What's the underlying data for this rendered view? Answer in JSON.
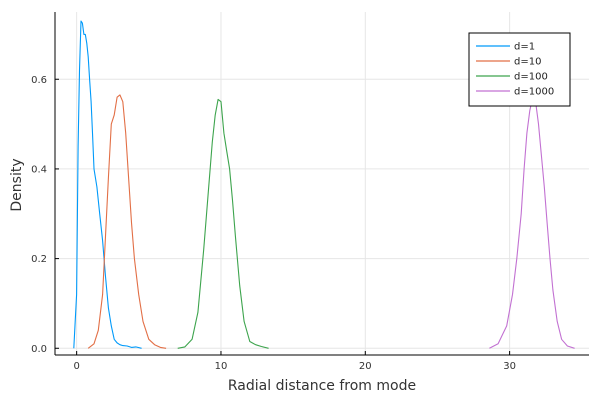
{
  "chart_data": {
    "type": "line",
    "title": "",
    "xlabel": "Radial distance from mode",
    "ylabel": "Density",
    "xlim": [
      -1.5,
      35.5
    ],
    "ylim": [
      -0.015,
      0.75
    ],
    "xticks": [
      0,
      10,
      20,
      30
    ],
    "yticks": [
      0.0,
      0.2,
      0.4,
      0.6
    ],
    "xtick_labels": [
      "0",
      "10",
      "20",
      "30"
    ],
    "ytick_labels": [
      "0.0",
      "0.2",
      "0.4",
      "0.6"
    ],
    "grid": true,
    "legend_position": "top-right",
    "series": [
      {
        "name": "d=1",
        "color": "#009AFA",
        "x": [
          -0.2,
          0.0,
          0.1,
          0.2,
          0.3,
          0.4,
          0.5,
          0.6,
          0.7,
          0.8,
          0.9,
          1.0,
          1.1,
          1.2,
          1.4,
          1.6,
          1.8,
          2.0,
          2.2,
          2.4,
          2.6,
          2.8,
          3.0,
          3.2,
          3.5,
          3.8,
          4.1,
          4.5
        ],
        "y": [
          0.0,
          0.12,
          0.45,
          0.62,
          0.73,
          0.725,
          0.7,
          0.7,
          0.68,
          0.65,
          0.6,
          0.55,
          0.48,
          0.4,
          0.36,
          0.3,
          0.24,
          0.16,
          0.09,
          0.05,
          0.02,
          0.012,
          0.008,
          0.006,
          0.005,
          0.002,
          0.003,
          0.0
        ]
      },
      {
        "name": "d=10",
        "color": "#E26F46",
        "x": [
          0.8,
          1.2,
          1.5,
          1.8,
          2.0,
          2.2,
          2.4,
          2.6,
          2.8,
          3.0,
          3.2,
          3.4,
          3.6,
          3.8,
          4.0,
          4.3,
          4.6,
          5.0,
          5.4,
          5.8,
          6.2
        ],
        "y": [
          0.0,
          0.01,
          0.04,
          0.12,
          0.25,
          0.38,
          0.5,
          0.52,
          0.56,
          0.565,
          0.55,
          0.48,
          0.38,
          0.28,
          0.2,
          0.12,
          0.06,
          0.02,
          0.008,
          0.002,
          0.0
        ]
      },
      {
        "name": "d=100",
        "color": "#3DA44D",
        "x": [
          7.0,
          7.5,
          8.0,
          8.4,
          8.8,
          9.1,
          9.4,
          9.6,
          9.8,
          10.0,
          10.2,
          10.4,
          10.6,
          10.8,
          11.0,
          11.3,
          11.6,
          12.0,
          12.4,
          12.8,
          13.3
        ],
        "y": [
          0.0,
          0.003,
          0.02,
          0.08,
          0.22,
          0.34,
          0.46,
          0.52,
          0.555,
          0.55,
          0.48,
          0.44,
          0.4,
          0.33,
          0.25,
          0.14,
          0.06,
          0.015,
          0.008,
          0.004,
          0.0
        ]
      },
      {
        "name": "d=1000",
        "color": "#C271D2",
        "x": [
          28.6,
          29.2,
          29.8,
          30.2,
          30.5,
          30.8,
          31.0,
          31.2,
          31.4,
          31.6,
          31.8,
          32.0,
          32.2,
          32.4,
          32.6,
          32.8,
          33.0,
          33.3,
          33.6,
          34.0,
          34.5
        ],
        "y": [
          0.0,
          0.01,
          0.05,
          0.12,
          0.2,
          0.3,
          0.4,
          0.48,
          0.53,
          0.56,
          0.55,
          0.5,
          0.43,
          0.36,
          0.28,
          0.2,
          0.13,
          0.06,
          0.02,
          0.005,
          0.0
        ]
      }
    ]
  }
}
